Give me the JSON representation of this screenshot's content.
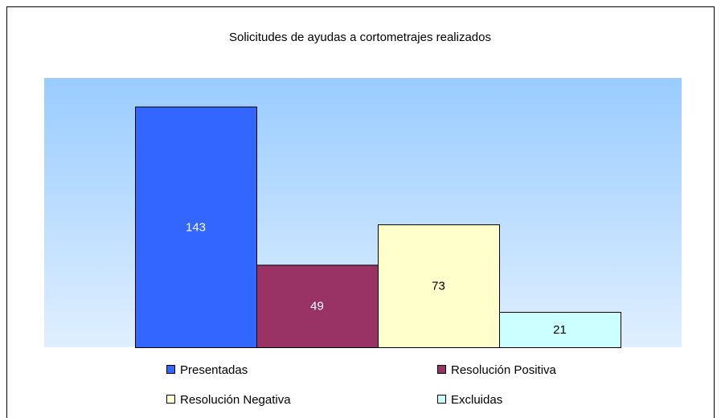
{
  "chart_data": {
    "type": "bar",
    "title": "Solicitudes de ayudas a cortometrajes realizados",
    "categories": [
      "Presentadas",
      "Resolución Positiva",
      "Resolución Negativa",
      "Excluidas"
    ],
    "values": [
      143,
      49,
      73,
      21
    ],
    "colors": [
      "#3366ff",
      "#993366",
      "#ffffcc",
      "#ccffff"
    ],
    "ylim": [
      0,
      160
    ],
    "legend": "bottom"
  }
}
